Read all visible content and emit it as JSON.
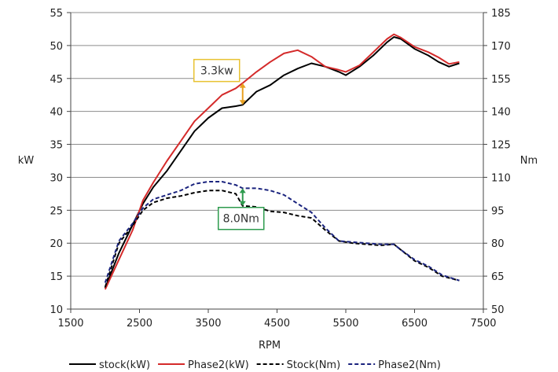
{
  "chart_data": {
    "type": "line",
    "xlabel": "RPM",
    "ylabel_left": "kW",
    "ylabel_right": "Nm",
    "xlim": [
      1500,
      7500
    ],
    "ylim_left": [
      10,
      55
    ],
    "ylim_right": [
      50,
      185
    ],
    "x_ticks": [
      "1500",
      "2500",
      "3500",
      "4500",
      "5500",
      "6500",
      "7500"
    ],
    "y_ticks_left": [
      "10",
      "15",
      "20",
      "25",
      "30",
      "35",
      "40",
      "45",
      "50",
      "55"
    ],
    "y_ticks_right": [
      "50",
      "65",
      "80",
      "95",
      "110",
      "125",
      "140",
      "155",
      "170",
      "185"
    ],
    "grid": "horizontal",
    "legend_position": "bottom",
    "series": [
      {
        "name": "stock(kW)",
        "axis": "left",
        "color": "#000000",
        "style": "solid",
        "x": [
          2000,
          2200,
          2400,
          2550,
          2700,
          2900,
          3100,
          3300,
          3500,
          3700,
          3900,
          4000,
          4200,
          4400,
          4600,
          4800,
          5000,
          5200,
          5400,
          5500,
          5700,
          5900,
          6100,
          6200,
          6300,
          6500,
          6700,
          6850,
          7000,
          7150
        ],
        "values": [
          13.2,
          18.5,
          22.8,
          26.0,
          28.5,
          31.0,
          34.0,
          37.0,
          39.0,
          40.5,
          40.8,
          41.0,
          43.0,
          44.0,
          45.5,
          46.5,
          47.3,
          46.8,
          46.0,
          45.5,
          46.8,
          48.5,
          50.5,
          51.3,
          51.0,
          49.5,
          48.5,
          47.5,
          46.8,
          47.3
        ]
      },
      {
        "name": "Phase2(kW)",
        "axis": "left",
        "color": "#d42a2a",
        "style": "solid",
        "x": [
          2000,
          2200,
          2400,
          2550,
          2700,
          2900,
          3100,
          3300,
          3500,
          3700,
          3900,
          4000,
          4200,
          4400,
          4600,
          4800,
          5000,
          5200,
          5400,
          5500,
          5700,
          5900,
          6100,
          6200,
          6300,
          6500,
          6700,
          6850,
          7000,
          7150
        ],
        "values": [
          13.0,
          17.5,
          22.0,
          26.5,
          29.2,
          32.5,
          35.5,
          38.5,
          40.5,
          42.5,
          43.5,
          44.3,
          46.0,
          47.5,
          48.8,
          49.3,
          48.3,
          46.8,
          46.3,
          46.0,
          47.0,
          49.0,
          51.0,
          51.7,
          51.2,
          49.8,
          49.0,
          48.2,
          47.2,
          47.5
        ]
      },
      {
        "name": "Stock(Nm)",
        "axis": "right",
        "color": "#000000",
        "style": "dashed",
        "x": [
          2000,
          2200,
          2400,
          2550,
          2700,
          2900,
          3100,
          3300,
          3500,
          3700,
          3900,
          4000,
          4200,
          4400,
          4600,
          4800,
          5000,
          5200,
          5400,
          5600,
          5800,
          6000,
          6200,
          6300,
          6500,
          6700,
          6900,
          7150
        ],
        "values": [
          60,
          80,
          88,
          95,
          98.5,
          100.5,
          101.5,
          103,
          104,
          104,
          102.5,
          97,
          96.5,
          94.5,
          94,
          92.5,
          91.5,
          86,
          81,
          80,
          79.5,
          79,
          79.5,
          77,
          72,
          69,
          65,
          63
        ]
      },
      {
        "name": "Phase2(Nm)",
        "axis": "right",
        "color": "#1a237e",
        "style": "dashed",
        "x": [
          2000,
          2200,
          2400,
          2550,
          2700,
          2900,
          3100,
          3300,
          3500,
          3700,
          3900,
          4000,
          4200,
          4400,
          4600,
          4800,
          5000,
          5200,
          5400,
          5600,
          5800,
          6000,
          6200,
          6300,
          6500,
          6700,
          6900,
          7150
        ],
        "values": [
          62,
          81,
          89,
          96,
          100,
          102,
          104,
          107,
          108,
          108,
          106.5,
          105,
          105,
          104,
          102,
          98,
          94,
          87,
          81,
          80.5,
          80,
          79.5,
          79.5,
          77,
          72.5,
          69.5,
          65.5,
          63
        ]
      }
    ],
    "annotations": [
      {
        "text": "3.3kw",
        "x": 4000,
        "y_from": 41.0,
        "y_to": 44.3,
        "axis": "left",
        "box_color": "#e8c232",
        "arrow_color": "#e8a020"
      },
      {
        "text": "8.0Nm",
        "x": 4000,
        "y_from": 97,
        "y_to": 105,
        "axis": "right",
        "box_color": "#2e9b4e",
        "arrow_color": "#2e9b4e"
      }
    ]
  }
}
